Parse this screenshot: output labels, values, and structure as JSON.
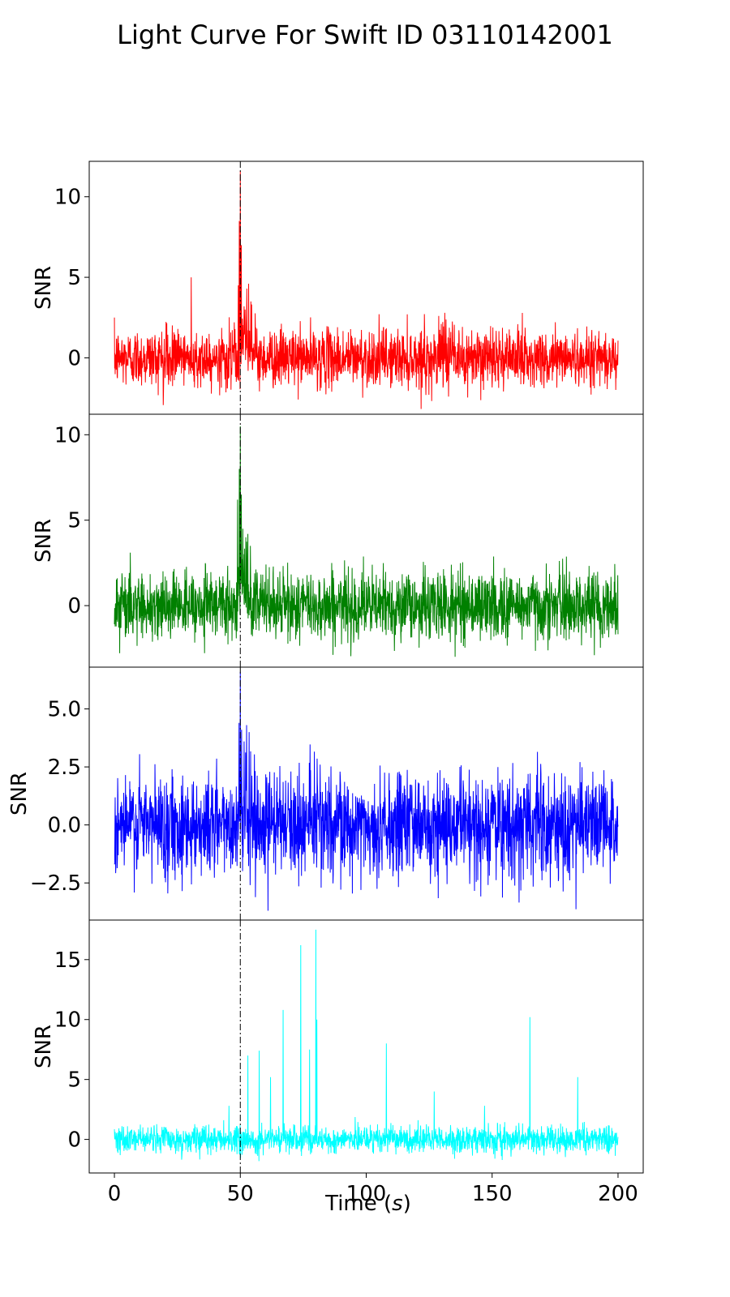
{
  "chart_data": {
    "type": "line",
    "title": "Light Curve For Swift ID 03110142001",
    "xlabel_prefix": "Time (",
    "xlabel_unit": "s",
    "xlabel_suffix": ")",
    "ylabel": "SNR",
    "xlim": [
      -10,
      210
    ],
    "x_ticks": [
      0,
      50,
      100,
      150,
      200
    ],
    "x_tick_labels": [
      "0",
      "50",
      "100",
      "150",
      "200"
    ],
    "x_range": [
      0,
      200
    ],
    "vline_x": 50,
    "grid": false,
    "panels": [
      {
        "color": "#ff0000",
        "ylim": [
          -3.5,
          12.2
        ],
        "y_ticks": [
          0,
          5,
          10
        ],
        "y_tick_labels": [
          "0",
          "5",
          "10"
        ],
        "noise_std": 0.9,
        "noise_min": -3.2,
        "noise_max": 3.2,
        "peaks": [
          {
            "x": 50.0,
            "y": 11.6
          },
          {
            "x": 49.6,
            "y": 8.5
          },
          {
            "x": 50.4,
            "y": 7.0
          },
          {
            "x": 49.2,
            "y": 4.5
          },
          {
            "x": 51.5,
            "y": 3.2
          },
          {
            "x": 52.6,
            "y": 4.3
          },
          {
            "x": 53.3,
            "y": 4.6
          },
          {
            "x": 54.2,
            "y": 3.5
          },
          {
            "x": 30.5,
            "y": 5.0
          }
        ]
      },
      {
        "color": "#008000",
        "ylim": [
          -3.6,
          11.2
        ],
        "y_ticks": [
          0,
          5,
          10
        ],
        "y_tick_labels": [
          "0",
          "5",
          "10"
        ],
        "noise_std": 1.0,
        "noise_min": -3.4,
        "noise_max": 3.4,
        "peaks": [
          {
            "x": 50.0,
            "y": 10.5
          },
          {
            "x": 49.6,
            "y": 8.0
          },
          {
            "x": 50.4,
            "y": 6.5
          },
          {
            "x": 48.9,
            "y": 6.2
          },
          {
            "x": 51.0,
            "y": 4.5
          },
          {
            "x": 52.2,
            "y": 4.0
          },
          {
            "x": 53.0,
            "y": 4.2
          },
          {
            "x": 54.0,
            "y": 3.5
          }
        ]
      },
      {
        "color": "#0000ff",
        "ylim": [
          -4.1,
          6.8
        ],
        "y_ticks": [
          -2.5,
          0.0,
          2.5,
          5.0
        ],
        "y_tick_labels": [
          "−2.5",
          "0.0",
          "2.5",
          "5.0"
        ],
        "noise_std": 1.1,
        "noise_min": -3.7,
        "noise_max": 3.9,
        "peaks": [
          {
            "x": 50.0,
            "y": 6.6
          },
          {
            "x": 49.5,
            "y": 4.4
          },
          {
            "x": 50.5,
            "y": 4.1
          },
          {
            "x": 51.5,
            "y": 3.6
          },
          {
            "x": 52.5,
            "y": 4.3
          },
          {
            "x": 53.5,
            "y": 4.0
          },
          {
            "x": 61.0,
            "y": -3.7
          }
        ]
      },
      {
        "color": "#00ffff",
        "ylim": [
          -2.8,
          18.3
        ],
        "y_ticks": [
          0,
          5,
          10,
          15
        ],
        "y_tick_labels": [
          "0",
          "5",
          "10",
          "15"
        ],
        "noise_std": 0.55,
        "noise_min": -2.6,
        "noise_max": 2.2,
        "peaks": [
          {
            "x": 45.5,
            "y": 2.8
          },
          {
            "x": 53.0,
            "y": 7.0
          },
          {
            "x": 57.5,
            "y": 7.4
          },
          {
            "x": 62.0,
            "y": 5.2
          },
          {
            "x": 67.0,
            "y": 10.8
          },
          {
            "x": 74.0,
            "y": 16.2
          },
          {
            "x": 77.5,
            "y": 7.5
          },
          {
            "x": 80.0,
            "y": 17.5
          },
          {
            "x": 80.4,
            "y": 10.0
          },
          {
            "x": 108.0,
            "y": 8.0
          },
          {
            "x": 127.0,
            "y": 4.0
          },
          {
            "x": 147.0,
            "y": 2.8
          },
          {
            "x": 165.0,
            "y": 10.2
          },
          {
            "x": 184.0,
            "y": 5.2
          }
        ]
      }
    ]
  }
}
